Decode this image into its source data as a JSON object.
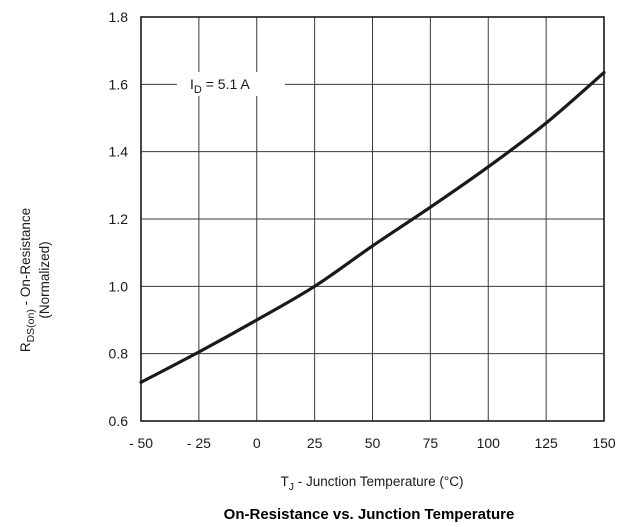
{
  "chart_data": {
    "type": "line",
    "title": "On-Resistance vs. Junction Temperature",
    "xlabel": {
      "main": "T",
      "sub": "J",
      "rest": " - Junction Temperature (°C)"
    },
    "ylabel": {
      "line1_main": "R",
      "line1_sub": "DS(on)",
      "line1_rest": " - On-Resistance",
      "line2": "(Normalized)"
    },
    "annotation": {
      "main": "I",
      "sub": "D",
      "rest": " = 5.1 A"
    },
    "xlim": [
      -50,
      150
    ],
    "ylim": [
      0.6,
      1.8
    ],
    "x_ticks": [
      -50,
      -25,
      0,
      25,
      50,
      75,
      100,
      125,
      150
    ],
    "x_tick_labels": [
      "- 50",
      "- 25",
      "0",
      "25",
      "50",
      "75",
      "100",
      "125",
      "150"
    ],
    "y_ticks": [
      0.6,
      0.8,
      1.0,
      1.2,
      1.4,
      1.6,
      1.8
    ],
    "y_tick_labels": [
      "0.6",
      "0.8",
      "1.0",
      "1.2",
      "1.4",
      "1.6",
      "1.8"
    ],
    "grid": true,
    "series": [
      {
        "x": [
          -50,
          -25,
          0,
          25,
          50,
          75,
          100,
          125,
          150
        ],
        "y": [
          0.715,
          0.805,
          0.9,
          1.0,
          1.12,
          1.235,
          1.355,
          1.485,
          1.635
        ]
      }
    ]
  }
}
